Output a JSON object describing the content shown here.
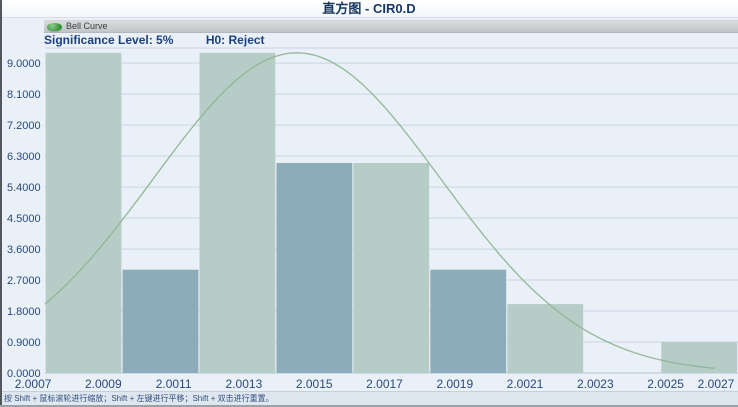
{
  "window": {
    "title": "直方图 - CIR0.D"
  },
  "legend": {
    "items": [
      {
        "label": "Bell Curve",
        "icon": "bell-curve-swatch"
      }
    ]
  },
  "annotations": {
    "significance_label": "Significance Level: 5%",
    "h0_label": "H0: Reject"
  },
  "status_bar": {
    "text": "按 Shift + 鼠标滚轮进行缩放；Shift + 左键进行平移；Shift + 双击进行重置。"
  },
  "colors": {
    "background": "#e9f0f8",
    "bar_light": "#b6ccc6",
    "bar_dark": "#8cacba",
    "curve": "#8fb492",
    "grid": "#c9d5e3",
    "axis_line": "#b6c4d6",
    "axis_text": "#2a4a7c",
    "title_text": "#17375e"
  },
  "chart_data": {
    "type": "bar",
    "subtype": "histogram_with_bell_curve",
    "title": "直方图 - CIR0.D",
    "xlabel": "",
    "ylabel": "",
    "grid": "horizontal",
    "legend_position": "top-left",
    "x_tick_labels": [
      "2.0007",
      "2.0009",
      "2.0011",
      "2.0013",
      "2.0015",
      "2.0017",
      "2.0019",
      "2.0021",
      "2.0023",
      "2.0025",
      "2.0027"
    ],
    "x_tick_values": [
      2.0007,
      2.0009,
      2.0011,
      2.0013,
      2.0015,
      2.0017,
      2.0019,
      2.0021,
      2.0023,
      2.0025,
      2.0027
    ],
    "y_tick_labels": [
      "0.0000",
      "0.9000",
      "1.8000",
      "2.7000",
      "3.6000",
      "4.5000",
      "5.4000",
      "6.3000",
      "7.2000",
      "8.1000",
      "9.0000"
    ],
    "y_tick_values": [
      0,
      0.9,
      1.8,
      2.7,
      3.6,
      4.5,
      5.4,
      6.3,
      7.2,
      8.1,
      9.0
    ],
    "x_range": [
      2.000734,
      2.002706
    ],
    "y_range": [
      0,
      9.44
    ],
    "bin_edges": [
      2.000734,
      2.000953,
      2.001172,
      2.001391,
      2.00161,
      2.001829,
      2.002048,
      2.002267,
      2.002486,
      2.002705
    ],
    "values": [
      9.3,
      3.0,
      9.3,
      6.1,
      6.1,
      3.0,
      2.0,
      0.0,
      0.9
    ],
    "bar_color_pattern": [
      "light",
      "dark",
      "light",
      "dark",
      "light",
      "dark",
      "light",
      "dark",
      "light"
    ],
    "bell_curve": {
      "name": "Bell Curve",
      "mean": 2.001451,
      "sigma": 0.000409,
      "peak": 9.3,
      "x_start": 2.000734,
      "x_end": 2.00264
    },
    "layout": {
      "plot_left": 45,
      "plot_right": 738,
      "plot_top": 48,
      "plot_bottom": 373,
      "x_label_baseline": 388
    }
  }
}
